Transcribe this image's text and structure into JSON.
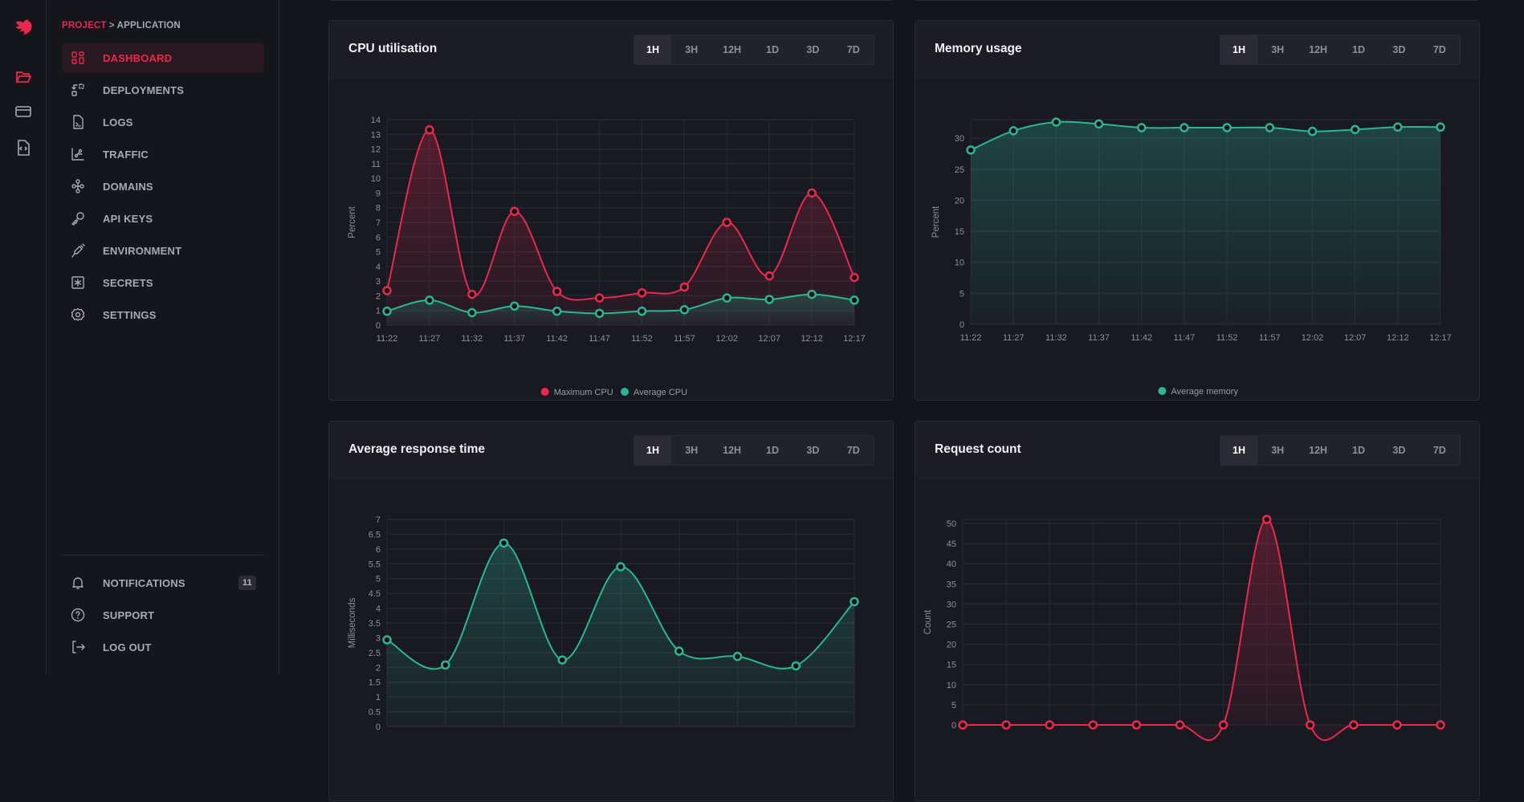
{
  "breadcrumb": {
    "project": "PROJECT",
    "separator": ">",
    "application": "APPLICATION"
  },
  "rail": {
    "icons": [
      "nestjs-logo",
      "folder-icon",
      "credit-card-icon",
      "code-file-icon"
    ]
  },
  "sidebar": {
    "items": [
      {
        "label": "DASHBOARD",
        "icon": "dashboard-icon",
        "active": true
      },
      {
        "label": "DEPLOYMENTS",
        "icon": "deployments-icon"
      },
      {
        "label": "LOGS",
        "icon": "logs-icon"
      },
      {
        "label": "TRAFFIC",
        "icon": "traffic-icon"
      },
      {
        "label": "DOMAINS",
        "icon": "domains-icon"
      },
      {
        "label": "API KEYS",
        "icon": "key-icon"
      },
      {
        "label": "ENVIRONMENT",
        "icon": "syringe-icon"
      },
      {
        "label": "SECRETS",
        "icon": "asterisk-box-icon"
      },
      {
        "label": "SETTINGS",
        "icon": "gear-icon"
      }
    ],
    "bottom": [
      {
        "label": "NOTIFICATIONS",
        "icon": "bell-icon",
        "badge": "11"
      },
      {
        "label": "SUPPORT",
        "icon": "help-circle-icon"
      },
      {
        "label": "LOG OUT",
        "icon": "logout-icon"
      }
    ]
  },
  "ranges": [
    "1H",
    "3H",
    "12H",
    "1D",
    "3D",
    "7D"
  ],
  "selected_range": "1H",
  "colors": {
    "accent": "#e8294f",
    "teal": "#2bb596",
    "bg": "#14141b",
    "card": "#191921"
  },
  "cards": [
    {
      "title": "CPU utilisation"
    },
    {
      "title": "Memory usage"
    },
    {
      "title": "Average response time"
    },
    {
      "title": "Request count"
    }
  ],
  "chart_data": [
    {
      "type": "area",
      "ylabel": "Percent",
      "ylim": [
        0,
        14
      ],
      "ytick_step": 1,
      "grid": true,
      "legend": "bottom",
      "categories": [
        "11:22",
        "11:27",
        "11:32",
        "11:37",
        "11:42",
        "11:47",
        "11:52",
        "11:57",
        "12:02",
        "12:07",
        "12:12",
        "12:17"
      ],
      "series": [
        {
          "name": "Maximum CPU",
          "color": "#e8294f",
          "values": [
            2.35,
            13.3,
            2.1,
            7.75,
            2.3,
            1.85,
            2.2,
            2.6,
            7.0,
            3.35,
            9.0,
            3.25
          ]
        },
        {
          "name": "Average CPU",
          "color": "#2bb596",
          "values": [
            0.95,
            1.7,
            0.85,
            1.3,
            0.95,
            0.8,
            0.95,
            1.05,
            1.85,
            1.75,
            2.1,
            1.7
          ]
        }
      ]
    },
    {
      "type": "area",
      "ylabel": "Percent",
      "ylim": [
        0,
        33
      ],
      "ytick_step": 5,
      "grid": true,
      "legend": "bottom",
      "categories": [
        "11:22",
        "11:27",
        "11:32",
        "11:37",
        "11:42",
        "11:47",
        "11:52",
        "11:57",
        "12:02",
        "12:07",
        "12:12",
        "12:17"
      ],
      "series": [
        {
          "name": "Average memory",
          "color": "#2bb596",
          "values": [
            28.1,
            31.2,
            32.6,
            32.3,
            31.7,
            31.7,
            31.7,
            31.7,
            31.1,
            31.4,
            31.8,
            31.8
          ]
        }
      ]
    },
    {
      "type": "area",
      "ylabel": "Milliseconds",
      "ylim": [
        0,
        7
      ],
      "ytick_step": 0.5,
      "grid": true,
      "series": [
        {
          "color": "#2bb596",
          "values": [
            2.93,
            2.08,
            6.2,
            2.25,
            5.4,
            2.55,
            2.37,
            2.05,
            4.22
          ]
        }
      ]
    },
    {
      "type": "area",
      "ylabel": "Count",
      "ylim": [
        0,
        51
      ],
      "ytick_step": 5,
      "grid": true,
      "series": [
        {
          "color": "#e8294f",
          "values": [
            0,
            0,
            0,
            0,
            0,
            0,
            0,
            51,
            0,
            0,
            0,
            0
          ]
        }
      ]
    }
  ]
}
